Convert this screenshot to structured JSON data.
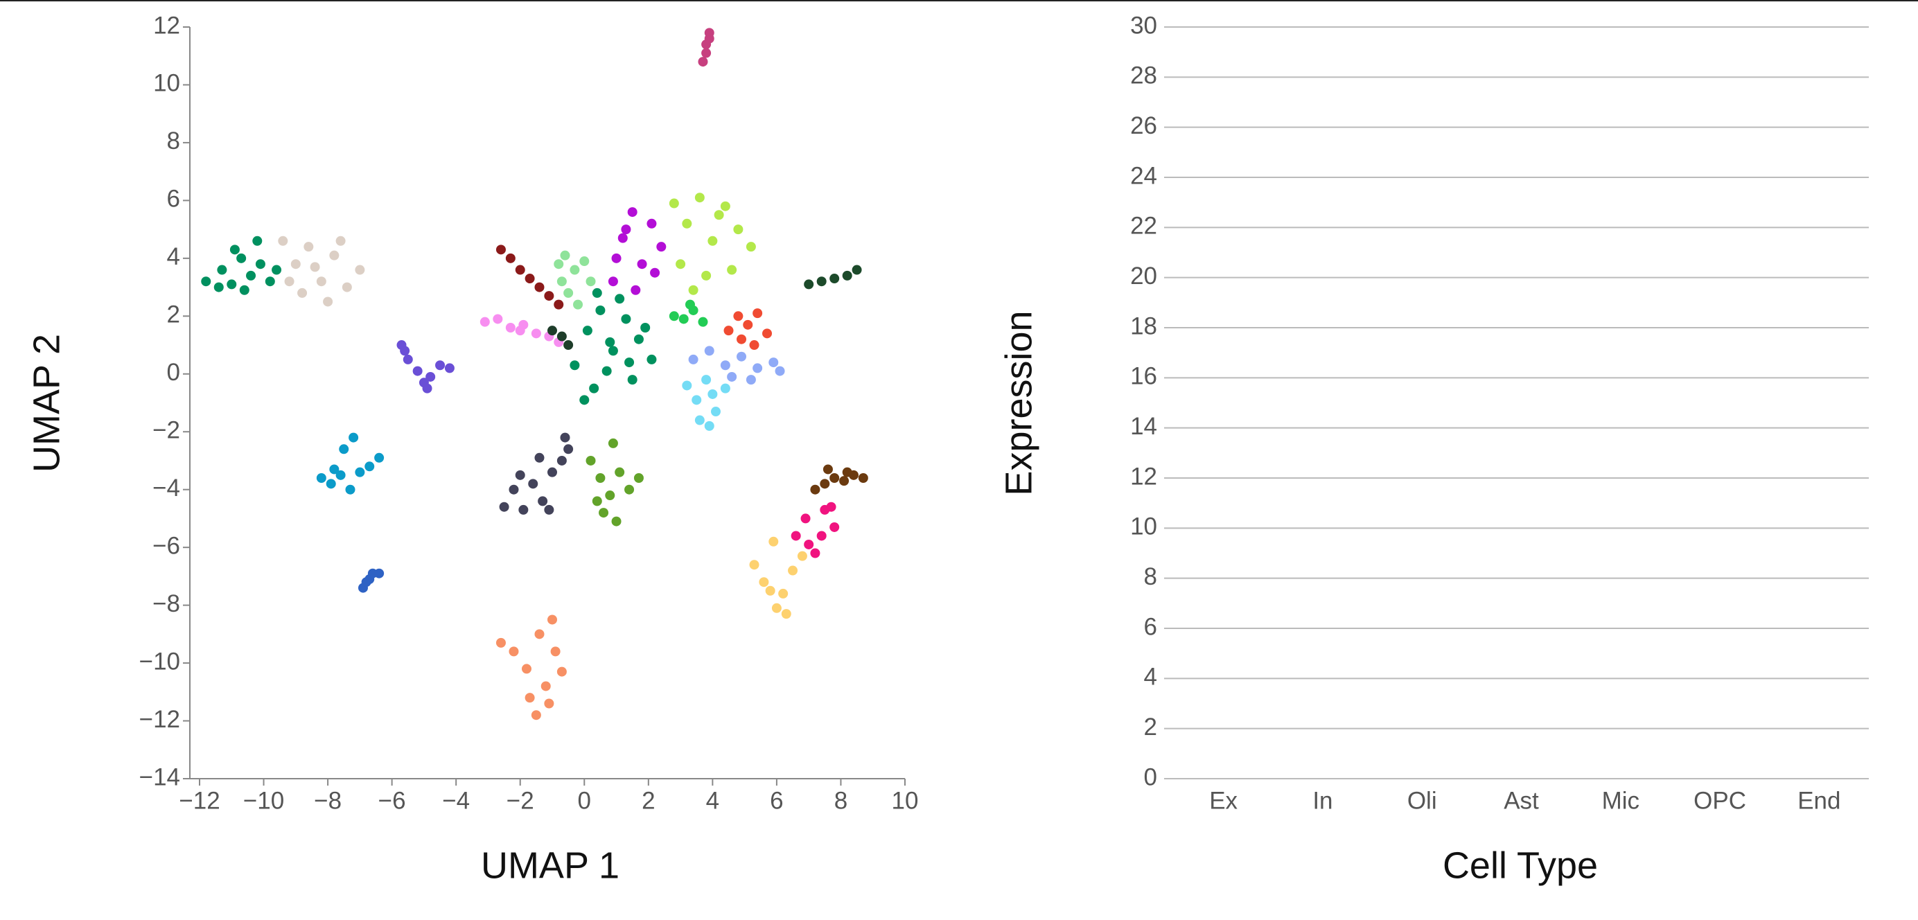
{
  "chart_data": [
    {
      "type": "scatter",
      "xlabel": "UMAP 1",
      "ylabel": "UMAP 2",
      "xlim": [
        -12,
        10
      ],
      "ylim": [
        -14,
        12
      ],
      "xticks": [
        {
          "value": -12,
          "label": "−12"
        },
        {
          "value": -10,
          "label": "−10"
        },
        {
          "value": -8,
          "label": "−8"
        },
        {
          "value": -6,
          "label": "−6"
        },
        {
          "value": -4,
          "label": "−4"
        },
        {
          "value": -2,
          "label": "−2"
        },
        0,
        2,
        4,
        6,
        8,
        10
      ],
      "yticks": [
        {
          "value": -14,
          "label": "−14"
        },
        {
          "value": -12,
          "label": "−12"
        },
        {
          "value": -10,
          "label": "−10"
        },
        {
          "value": -8,
          "label": "−8"
        },
        {
          "value": -6,
          "label": "−6"
        },
        {
          "value": -4,
          "label": "−4"
        },
        {
          "value": -2,
          "label": "−2"
        },
        0,
        2,
        4,
        6,
        8,
        10,
        12
      ],
      "series": [
        {
          "color": "#00905f",
          "x": [
            -11.8,
            -11.3,
            -11.0,
            -10.7,
            -10.4,
            -10.1,
            -9.8,
            -10.6,
            -10.9,
            -10.2,
            -9.6,
            -11.4
          ],
          "y": [
            3.2,
            3.6,
            3.1,
            4.0,
            3.4,
            3.8,
            3.2,
            2.9,
            4.3,
            4.6,
            3.6,
            3.0
          ]
        },
        {
          "color": "#dccfc5",
          "x": [
            -9.4,
            -9.0,
            -8.6,
            -8.2,
            -7.8,
            -7.4,
            -7.0,
            -8.8,
            -8.0,
            -7.6,
            -9.2,
            -8.4
          ],
          "y": [
            4.6,
            3.8,
            4.4,
            3.2,
            4.1,
            3.0,
            3.6,
            2.8,
            2.5,
            4.6,
            3.2,
            3.7
          ]
        },
        {
          "color": "#8b1a1a",
          "x": [
            -2.6,
            -2.3,
            -2.0,
            -1.7,
            -1.4,
            -1.1,
            -0.8
          ],
          "y": [
            4.3,
            4.0,
            3.6,
            3.3,
            3.0,
            2.7,
            2.4
          ]
        },
        {
          "color": "#f78ef0",
          "x": [
            -3.1,
            -2.7,
            -2.3,
            -1.9,
            -1.5,
            -1.1,
            -0.8,
            -2.0
          ],
          "y": [
            1.8,
            1.9,
            1.6,
            1.7,
            1.4,
            1.3,
            1.1,
            1.5
          ]
        },
        {
          "color": "#6a4fd6",
          "x": [
            -5.7,
            -5.5,
            -5.2,
            -5.0,
            -4.8,
            -4.5,
            -4.2,
            -5.6,
            -4.9
          ],
          "y": [
            1.0,
            0.5,
            0.1,
            -0.3,
            -0.1,
            0.3,
            0.2,
            0.8,
            -0.5
          ]
        },
        {
          "color": "#0b9bc9",
          "x": [
            -8.2,
            -7.9,
            -7.6,
            -7.3,
            -7.0,
            -6.7,
            -6.4,
            -7.2,
            -7.5,
            -7.8
          ],
          "y": [
            -3.6,
            -3.8,
            -3.5,
            -4.0,
            -3.4,
            -3.2,
            -2.9,
            -2.2,
            -2.6,
            -3.3
          ]
        },
        {
          "color": "#2e62c4",
          "x": [
            -6.9,
            -6.8,
            -6.7,
            -6.6,
            -6.4
          ],
          "y": [
            -7.4,
            -7.2,
            -7.1,
            -6.9,
            -6.9
          ]
        },
        {
          "color": "#8fe39a",
          "x": [
            -0.8,
            -0.6,
            -0.3,
            0,
            0.2,
            -0.5,
            -0.2,
            -0.7
          ],
          "y": [
            3.8,
            4.1,
            3.6,
            3.9,
            3.2,
            2.8,
            2.4,
            3.2
          ]
        },
        {
          "color": "#b30ed6",
          "x": [
            0.9,
            1.2,
            1.5,
            1.8,
            2.1,
            2.4,
            1.0,
            1.6,
            2.2,
            1.3
          ],
          "y": [
            3.2,
            4.7,
            5.6,
            3.8,
            5.2,
            4.4,
            4.0,
            2.9,
            3.5,
            5.0
          ]
        },
        {
          "color": "#b3e84a",
          "x": [
            2.8,
            3.2,
            3.6,
            4.0,
            4.4,
            4.8,
            5.2,
            3.0,
            3.8,
            4.6,
            3.4,
            4.2
          ],
          "y": [
            5.9,
            5.2,
            6.1,
            4.6,
            5.8,
            5.0,
            4.4,
            3.8,
            3.4,
            3.6,
            2.9,
            5.5
          ]
        },
        {
          "color": "#00915e",
          "x": [
            -0.3,
            0.1,
            0.5,
            0.9,
            1.3,
            1.7,
            2.1,
            0.3,
            0.7,
            1.1,
            1.5,
            1.9,
            0.0,
            0.8,
            1.4,
            0.4
          ],
          "y": [
            0.3,
            1.5,
            2.2,
            0.8,
            1.9,
            1.2,
            0.5,
            -0.5,
            0.1,
            2.6,
            -0.2,
            1.6,
            -0.9,
            1.1,
            0.4,
            2.8
          ]
        },
        {
          "color": "#f04b32",
          "x": [
            4.5,
            4.8,
            5.1,
            5.4,
            5.7,
            4.9,
            5.3
          ],
          "y": [
            1.5,
            2.0,
            1.7,
            2.1,
            1.4,
            1.2,
            1.0
          ]
        },
        {
          "color": "#8faaf7",
          "x": [
            3.4,
            3.9,
            4.4,
            4.9,
            5.4,
            5.9,
            6.1,
            4.6,
            5.2
          ],
          "y": [
            0.5,
            0.8,
            0.3,
            0.6,
            0.2,
            0.4,
            0.1,
            -0.1,
            -0.2
          ]
        },
        {
          "color": "#74dcf5",
          "x": [
            3.2,
            3.5,
            3.8,
            4.1,
            4.4,
            3.6,
            4.0,
            3.9
          ],
          "y": [
            -0.4,
            -0.9,
            -0.2,
            -1.3,
            -0.5,
            -1.6,
            -0.7,
            -1.8
          ]
        },
        {
          "color": "#43435a",
          "x": [
            -2.5,
            -2.2,
            -1.9,
            -1.6,
            -1.3,
            -1.0,
            -0.7,
            -2.0,
            -1.4,
            -0.6,
            -1.1,
            -0.5
          ],
          "y": [
            -4.6,
            -4.0,
            -4.7,
            -3.8,
            -4.4,
            -3.4,
            -3.0,
            -3.5,
            -2.9,
            -2.2,
            -4.7,
            -2.6
          ]
        },
        {
          "color": "#62a32a",
          "x": [
            0.2,
            0.5,
            0.8,
            1.1,
            1.4,
            1.7,
            0.6,
            1.0,
            0.9,
            0.4
          ],
          "y": [
            -3.0,
            -3.6,
            -4.2,
            -3.4,
            -4.0,
            -3.6,
            -4.8,
            -5.1,
            -2.4,
            -4.4
          ]
        },
        {
          "color": "#f79064",
          "x": [
            -2.6,
            -2.2,
            -1.8,
            -1.5,
            -1.2,
            -0.9,
            -1.4,
            -1.0,
            -1.7,
            -1.1,
            -0.7
          ],
          "y": [
            -9.3,
            -9.6,
            -10.2,
            -11.8,
            -10.8,
            -9.6,
            -9.0,
            -8.5,
            -11.2,
            -11.4,
            -10.3
          ]
        },
        {
          "color": "#f0137f",
          "x": [
            6.6,
            6.9,
            7.2,
            7.5,
            7.8,
            7.0,
            7.4,
            7.7
          ],
          "y": [
            -5.6,
            -5.0,
            -6.2,
            -4.7,
            -5.3,
            -5.9,
            -5.6,
            -4.6
          ]
        },
        {
          "color": "#fdd16f",
          "x": [
            5.3,
            5.6,
            5.9,
            6.2,
            6.5,
            6.8,
            6.0,
            6.3,
            5.8
          ],
          "y": [
            -6.6,
            -7.2,
            -5.8,
            -7.6,
            -6.8,
            -6.3,
            -8.1,
            -8.3,
            -7.5
          ]
        },
        {
          "color": "#6b3a0f",
          "x": [
            7.2,
            7.5,
            7.8,
            8.1,
            8.4,
            8.7,
            7.6,
            8.2
          ],
          "y": [
            -4.0,
            -3.8,
            -3.6,
            -3.7,
            -3.5,
            -3.6,
            -3.3,
            -3.4
          ]
        },
        {
          "color": "#1c4a2a",
          "x": [
            7.0,
            7.4,
            7.8,
            8.2,
            8.5
          ],
          "y": [
            3.1,
            3.2,
            3.3,
            3.4,
            3.6
          ]
        },
        {
          "color": "#c7407f",
          "x": [
            3.7,
            3.8,
            3.8,
            3.9,
            3.9
          ],
          "y": [
            10.8,
            11.1,
            11.4,
            11.6,
            11.8
          ]
        },
        {
          "color": "#22cc55",
          "x": [
            2.8,
            3.1,
            3.4,
            3.7,
            3.3
          ],
          "y": [
            2.0,
            1.9,
            2.2,
            1.8,
            2.4
          ]
        },
        {
          "color": "#1e3d2a",
          "x": [
            -1.0,
            -0.7,
            -0.5
          ],
          "y": [
            1.5,
            1.3,
            1.0
          ]
        }
      ]
    },
    {
      "type": "bar",
      "xlabel": "Cell Type",
      "ylabel": "Expression",
      "categories": [
        "Ex",
        "In",
        "Oli",
        "Ast",
        "Mic",
        "OPC",
        "End"
      ],
      "ylim": [
        0,
        30
      ],
      "yticks": [
        0,
        2,
        4,
        6,
        8,
        10,
        12,
        14,
        16,
        18,
        20,
        22,
        24,
        26,
        28,
        30
      ],
      "grid": true
    }
  ]
}
